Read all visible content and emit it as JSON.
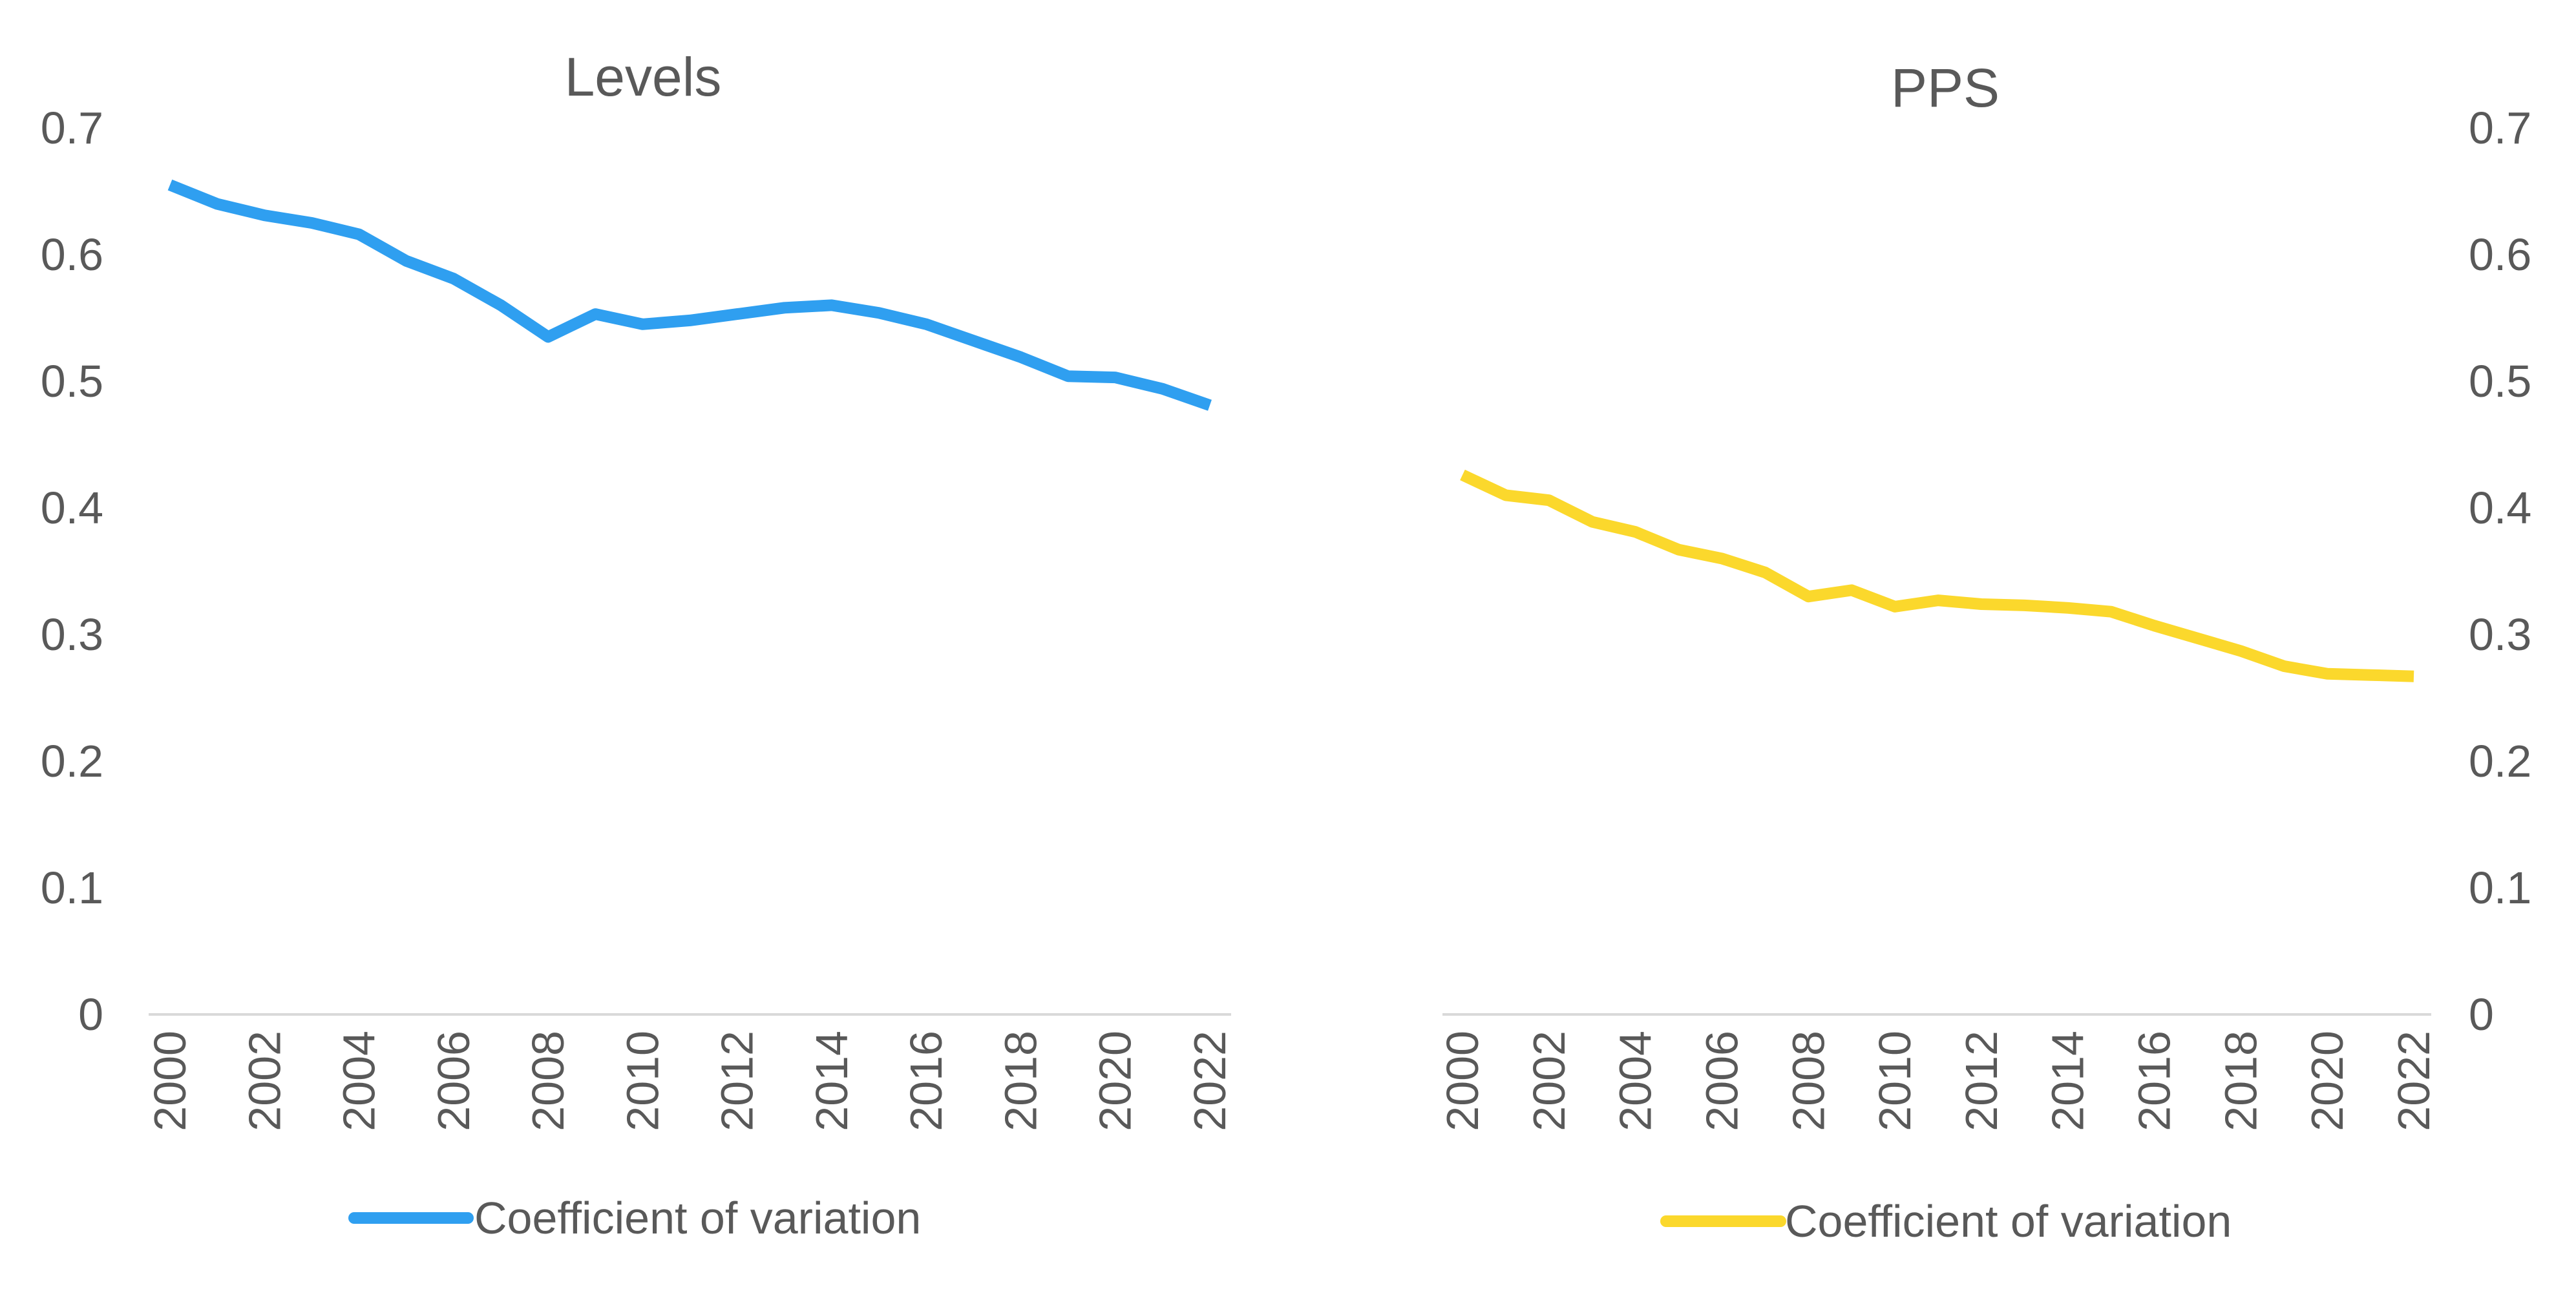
{
  "chart_data": [
    {
      "type": "line",
      "title": "Levels",
      "xlabel": "",
      "ylabel": "",
      "ylim": [
        0,
        0.7
      ],
      "yticks": [
        "0",
        "0.1",
        "0.2",
        "0.3",
        "0.4",
        "0.5",
        "0.6",
        "0.7"
      ],
      "yaxis_side": "left",
      "x": [
        2000,
        2001,
        2002,
        2003,
        2004,
        2005,
        2006,
        2007,
        2008,
        2009,
        2010,
        2011,
        2012,
        2013,
        2014,
        2015,
        2016,
        2017,
        2018,
        2019,
        2020,
        2021,
        2022
      ],
      "xticks": [
        "2000",
        "2002",
        "2004",
        "2006",
        "2008",
        "2010",
        "2012",
        "2014",
        "2016",
        "2018",
        "2020",
        "2022"
      ],
      "grid": false,
      "legend_position": "bottom",
      "series": [
        {
          "name": "Coefficient of variation",
          "color": "#2f9ff0",
          "values": [
            0.655,
            0.64,
            0.631,
            0.625,
            0.616,
            0.595,
            0.581,
            0.56,
            0.535,
            0.553,
            0.545,
            0.548,
            0.553,
            0.558,
            0.56,
            0.554,
            0.545,
            0.532,
            0.519,
            0.504,
            0.503,
            0.494,
            0.481
          ]
        }
      ]
    },
    {
      "type": "line",
      "title": "PPS",
      "xlabel": "",
      "ylabel": "",
      "ylim": [
        0,
        0.7
      ],
      "yticks": [
        "0",
        "0.1",
        "0.2",
        "0.3",
        "0.4",
        "0.5",
        "0.6",
        "0.7"
      ],
      "yaxis_side": "right",
      "x": [
        2000,
        2001,
        2002,
        2003,
        2004,
        2005,
        2006,
        2007,
        2008,
        2009,
        2010,
        2011,
        2012,
        2013,
        2014,
        2015,
        2016,
        2017,
        2018,
        2019,
        2020,
        2021,
        2022
      ],
      "xticks": [
        "2000",
        "2002",
        "2004",
        "2006",
        "2008",
        "2010",
        "2012",
        "2014",
        "2016",
        "2018",
        "2020",
        "2022"
      ],
      "grid": false,
      "legend_position": "bottom",
      "series": [
        {
          "name": "Coefficient of variation",
          "color": "#fbd82c",
          "values": [
            0.426,
            0.41,
            0.406,
            0.389,
            0.381,
            0.367,
            0.36,
            0.349,
            0.33,
            0.335,
            0.322,
            0.327,
            0.324,
            0.323,
            0.321,
            0.318,
            0.307,
            0.297,
            0.287,
            0.275,
            0.269,
            0.268,
            0.267
          ]
        }
      ]
    }
  ]
}
